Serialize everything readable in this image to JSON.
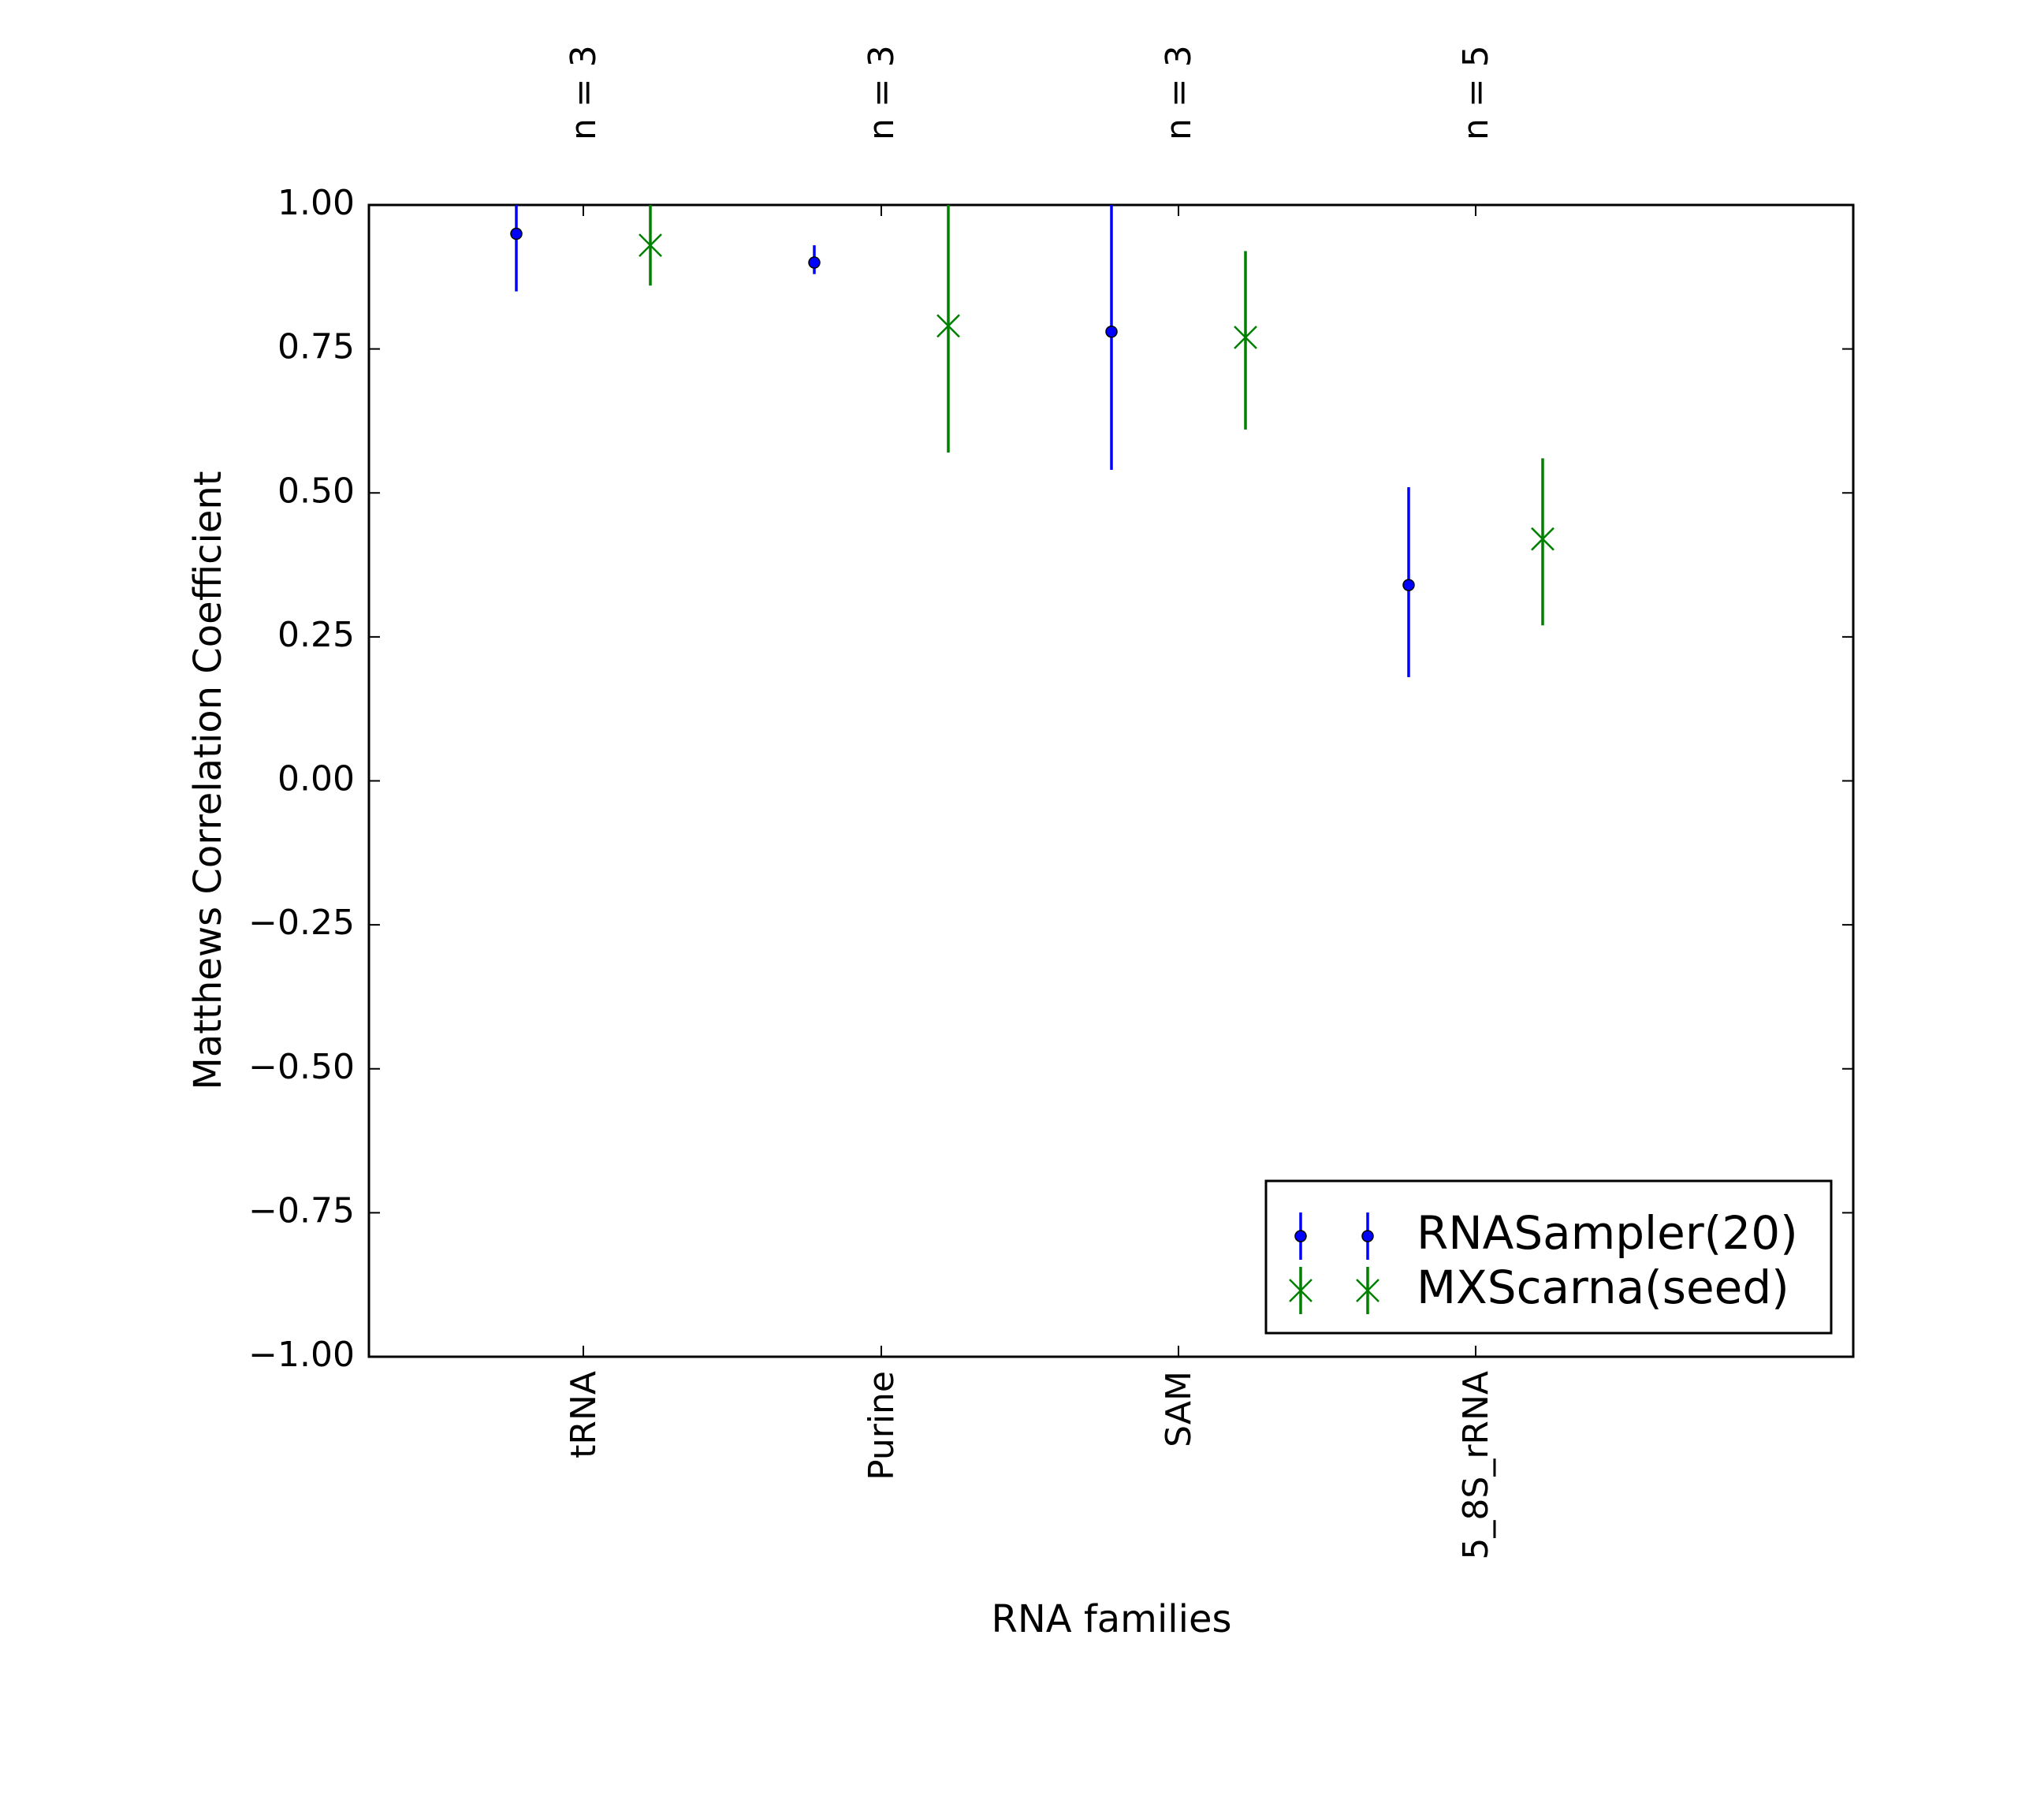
{
  "chart_data": {
    "type": "errorbar",
    "xlabel": "RNA families",
    "ylabel": "Matthews Correlation Coefficient",
    "ylim": [
      -1.0,
      1.0
    ],
    "yticks": [
      "1.00",
      "0.75",
      "0.50",
      "0.25",
      "0.00",
      "−0.25",
      "−0.50",
      "−0.75",
      "−1.00"
    ],
    "ytick_values": [
      1.0,
      0.75,
      0.5,
      0.25,
      0.0,
      -0.25,
      -0.5,
      -0.75,
      -1.0
    ],
    "categories": [
      "tRNA",
      "Purine",
      "SAM",
      "5_8S_rRNA"
    ],
    "n_labels": [
      "n = 3",
      "n = 3",
      "n = 3",
      "n = 5"
    ],
    "grid": false,
    "legend_position": "lower-right",
    "series": [
      {
        "name": "RNASampler(20)",
        "color": "#0000ff",
        "marker": "dot",
        "values": [
          0.95,
          0.9,
          0.78,
          0.34
        ],
        "lower": [
          0.85,
          0.88,
          0.54,
          0.18
        ],
        "upper": [
          1.0,
          0.93,
          1.0,
          0.51
        ]
      },
      {
        "name": "MXScarna(seed)",
        "color": "#008000",
        "marker": "x",
        "values": [
          0.93,
          0.79,
          0.77,
          0.42
        ],
        "lower": [
          0.86,
          0.57,
          0.61,
          0.27
        ],
        "upper": [
          1.0,
          1.0,
          0.92,
          0.56
        ]
      }
    ]
  }
}
